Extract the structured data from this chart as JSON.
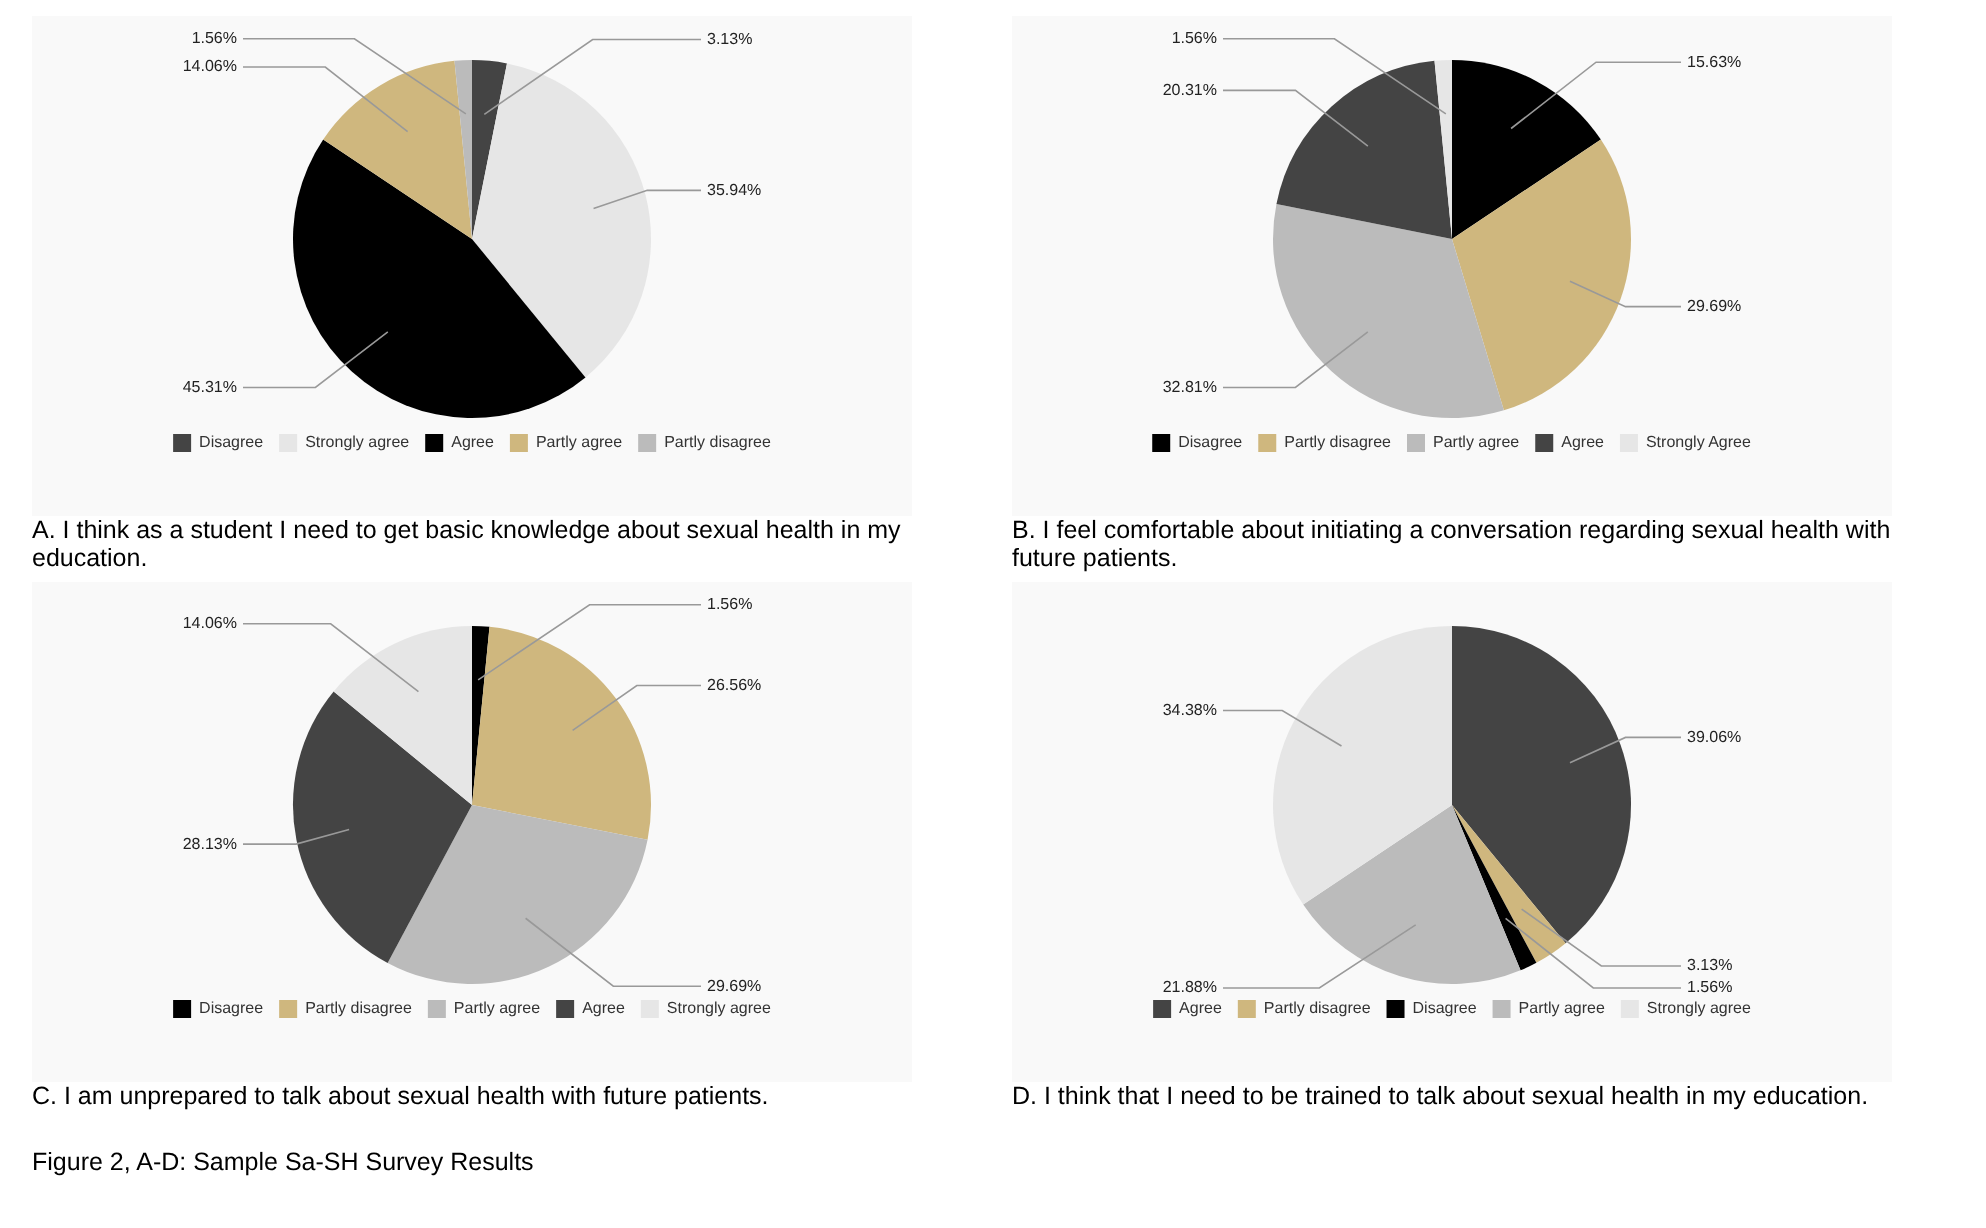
{
  "chart_data": [
    {
      "type": "pie",
      "title": "A. I think as a student I need to get basic knowledge about sexual health in my education.",
      "categories": [
        "Disagree",
        "Strongly agree",
        "Agree",
        "Partly agree",
        "Partly disagree"
      ],
      "values": [
        3.13,
        35.94,
        45.31,
        14.06,
        1.56
      ],
      "value_labels": [
        "3.13%",
        "35.94%",
        "45.31%",
        "14.06%",
        "1.56%"
      ],
      "colors": [
        "#444444",
        "#e6e6e6",
        "#000000",
        "#cfb77e",
        "#bbbbbb"
      ],
      "legend": "bottom"
    },
    {
      "type": "pie",
      "title": "B. I feel comfortable about initiating a conversation regarding sexual health with future patients.",
      "categories": [
        "Disagree",
        "Partly disagree",
        "Partly agree",
        "Agree",
        "Strongly Agree"
      ],
      "values": [
        15.63,
        29.69,
        32.81,
        20.31,
        1.56
      ],
      "value_labels": [
        "15.63%",
        "29.69%",
        "32.81%",
        "20.31%",
        "1.56%"
      ],
      "colors": [
        "#000000",
        "#cfb77e",
        "#bbbbbb",
        "#444444",
        "#e6e6e6"
      ],
      "legend": "bottom"
    },
    {
      "type": "pie",
      "title": "C. I am unprepared to talk about sexual health with future patients.",
      "categories": [
        "Disagree",
        "Partly disagree",
        "Partly agree",
        "Agree",
        "Strongly agree"
      ],
      "values": [
        1.56,
        26.56,
        29.69,
        28.13,
        14.06
      ],
      "value_labels": [
        "1.56%",
        "26.56%",
        "29.69%",
        "28.13%",
        "14.06%"
      ],
      "colors": [
        "#000000",
        "#cfb77e",
        "#bbbbbb",
        "#444444",
        "#e6e6e6"
      ],
      "legend": "bottom"
    },
    {
      "type": "pie",
      "title": "D. I think that I need to be trained to talk about sexual health in my education.",
      "categories": [
        "Agree",
        "Partly disagree",
        "Disagree",
        "Partly agree",
        "Strongly agree"
      ],
      "values": [
        39.06,
        3.13,
        1.56,
        21.88,
        34.38
      ],
      "value_labels": [
        "39.06%",
        "3.13%",
        "1.56%",
        "21.88%",
        "34.38%"
      ],
      "colors": [
        "#444444",
        "#cfb77e",
        "#000000",
        "#bbbbbb",
        "#e6e6e6"
      ],
      "legend": "bottom",
      "annotations": [
        "Figure 2, A-D: Sample Sa-SH Survey Results"
      ]
    }
  ]
}
